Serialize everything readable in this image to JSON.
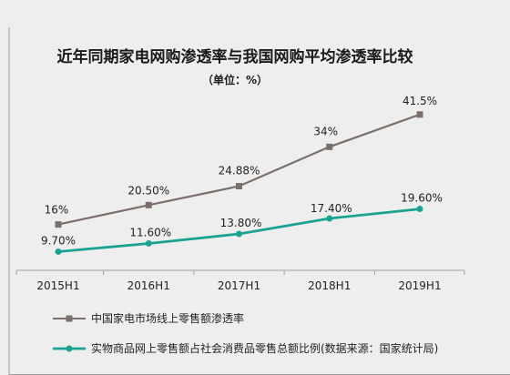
{
  "chart_data": {
    "type": "line",
    "title": "近年同期家电网购渗透率与我国网购平均渗透率比较",
    "subtitle": "（单位：%）",
    "categories": [
      "2015H1",
      "2016H1",
      "2017H1",
      "2018H1",
      "2019H1"
    ],
    "series": [
      {
        "name": "中国家电市场线上零售额渗透率",
        "values": [
          16,
          20.5,
          24.88,
          34,
          41.5
        ],
        "labels": [
          "16%",
          "20.50%",
          "24.88%",
          "34%",
          "41.5%"
        ],
        "color": "#7a6f6a",
        "marker": "square"
      },
      {
        "name": "实物商品网上零售额占社会消费品零售总额比例(数据来源：国家统计局)",
        "values": [
          9.7,
          11.6,
          13.8,
          17.4,
          19.6
        ],
        "labels": [
          "9.70%",
          "11.60%",
          "13.80%",
          "17.40%",
          "19.60%"
        ],
        "color": "#1aa393",
        "marker": "circle"
      }
    ],
    "ylim": [
      0,
      50
    ],
    "legend_position": "bottom",
    "grid": false
  }
}
